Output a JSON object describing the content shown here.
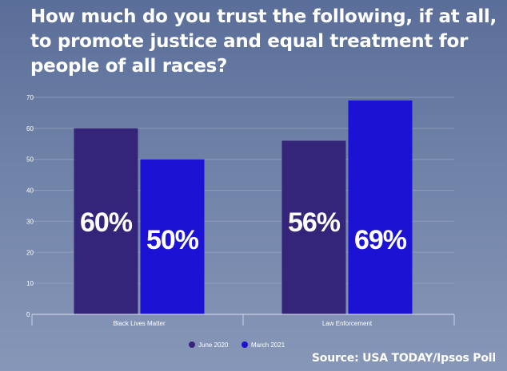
{
  "title": "How much do you trust the following, if at all, to promote justice and equal treatment for people of all races?",
  "source": "Source: USA TODAY/Ipsos Poll",
  "chart_data": {
    "type": "bar",
    "categories": [
      "Black Lives Matter",
      "Law Enforcement"
    ],
    "series": [
      {
        "name": "June 2020",
        "values": [
          60,
          56
        ],
        "labels": [
          "60%",
          "56%"
        ],
        "color": "#34257a"
      },
      {
        "name": "March 2021",
        "values": [
          50,
          69
        ],
        "labels": [
          "50%",
          "69%"
        ],
        "color": "#1c12d4"
      }
    ],
    "yticks": [
      "0",
      "10",
      "20",
      "30",
      "40",
      "50",
      "60",
      "70"
    ],
    "ylim": [
      0,
      70
    ],
    "grid": true,
    "legend": "bottom-center",
    "xlabel": "",
    "ylabel": ""
  }
}
